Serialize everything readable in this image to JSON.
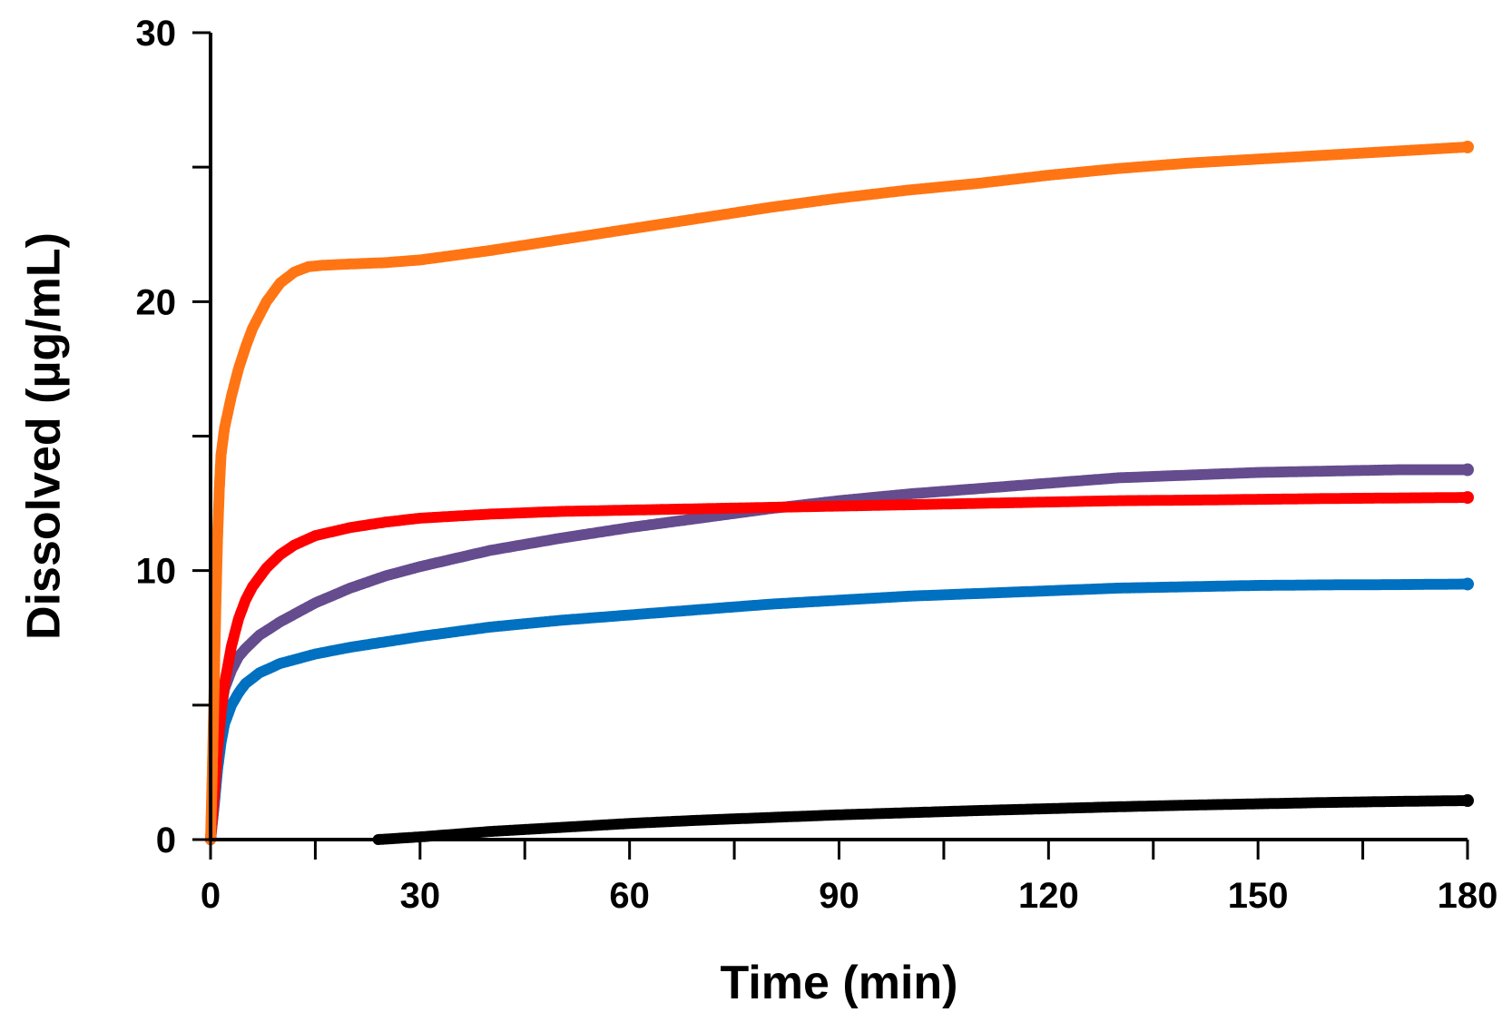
{
  "chart_data": {
    "type": "scatter",
    "title": "",
    "xlabel": "Time (min)",
    "ylabel": "Dissolved (µg/mL)",
    "xlim": [
      0,
      180
    ],
    "ylim": [
      0,
      30
    ],
    "x_major_ticks": [
      0,
      30,
      60,
      90,
      120,
      150,
      180
    ],
    "x_minor_ticks": [
      15,
      45,
      75,
      105,
      135,
      165
    ],
    "y_major_ticks": [
      0,
      10,
      20,
      30
    ],
    "y_minor_ticks": [
      5,
      15,
      25
    ],
    "x_tick_labels": [
      "0",
      "30",
      "60",
      "90",
      "120",
      "150",
      "180"
    ],
    "y_tick_labels": [
      "0",
      "10",
      "20",
      "30"
    ],
    "grid": false,
    "legend": "none",
    "series": [
      {
        "name": "orange",
        "color": "#FF7514",
        "points": [
          [
            0,
            0
          ],
          [
            0.25,
            2.5
          ],
          [
            0.5,
            5.5
          ],
          [
            0.75,
            8.6
          ],
          [
            1,
            11.2
          ],
          [
            1.25,
            13
          ],
          [
            1.5,
            14.3
          ],
          [
            2,
            15.3
          ],
          [
            3,
            16.5
          ],
          [
            4,
            17.5
          ],
          [
            5,
            18.3
          ],
          [
            6,
            19
          ],
          [
            8,
            20
          ],
          [
            10,
            20.7
          ],
          [
            12,
            21.1
          ],
          [
            14,
            21.3
          ],
          [
            16,
            21.35
          ],
          [
            20,
            21.4
          ],
          [
            25,
            21.45
          ],
          [
            30,
            21.55
          ],
          [
            40,
            21.9
          ],
          [
            50,
            22.3
          ],
          [
            60,
            22.7
          ],
          [
            70,
            23.1
          ],
          [
            80,
            23.5
          ],
          [
            90,
            23.85
          ],
          [
            100,
            24.15
          ],
          [
            110,
            24.4
          ],
          [
            120,
            24.7
          ],
          [
            130,
            24.95
          ],
          [
            140,
            25.15
          ],
          [
            150,
            25.3
          ],
          [
            160,
            25.45
          ],
          [
            170,
            25.6
          ],
          [
            180,
            25.75
          ]
        ]
      },
      {
        "name": "purple",
        "color": "#654C8E",
        "points": [
          [
            0,
            0
          ],
          [
            0.5,
            1.8
          ],
          [
            1,
            3.5
          ],
          [
            1.5,
            4.8
          ],
          [
            2,
            5.6
          ],
          [
            3,
            6.3
          ],
          [
            4,
            6.8
          ],
          [
            5,
            7.1
          ],
          [
            7,
            7.6
          ],
          [
            10,
            8.1
          ],
          [
            15,
            8.8
          ],
          [
            20,
            9.35
          ],
          [
            25,
            9.8
          ],
          [
            30,
            10.15
          ],
          [
            40,
            10.75
          ],
          [
            50,
            11.2
          ],
          [
            60,
            11.6
          ],
          [
            70,
            11.95
          ],
          [
            80,
            12.3
          ],
          [
            90,
            12.6
          ],
          [
            100,
            12.85
          ],
          [
            110,
            13.05
          ],
          [
            120,
            13.25
          ],
          [
            130,
            13.45
          ],
          [
            140,
            13.55
          ],
          [
            150,
            13.65
          ],
          [
            160,
            13.7
          ],
          [
            170,
            13.75
          ],
          [
            180,
            13.75
          ]
        ]
      },
      {
        "name": "red",
        "color": "#FF0000",
        "points": [
          [
            0,
            0
          ],
          [
            0.5,
            1.5
          ],
          [
            1,
            3.3
          ],
          [
            1.5,
            4.7
          ],
          [
            2,
            5.8
          ],
          [
            3,
            7.2
          ],
          [
            4,
            8.2
          ],
          [
            5,
            8.9
          ],
          [
            6,
            9.4
          ],
          [
            8,
            10.1
          ],
          [
            10,
            10.6
          ],
          [
            12,
            10.95
          ],
          [
            15,
            11.3
          ],
          [
            20,
            11.6
          ],
          [
            25,
            11.8
          ],
          [
            30,
            11.95
          ],
          [
            40,
            12.1
          ],
          [
            50,
            12.2
          ],
          [
            60,
            12.25
          ],
          [
            70,
            12.3
          ],
          [
            80,
            12.35
          ],
          [
            90,
            12.4
          ],
          [
            100,
            12.45
          ],
          [
            110,
            12.5
          ],
          [
            120,
            12.55
          ],
          [
            130,
            12.6
          ],
          [
            140,
            12.62
          ],
          [
            150,
            12.65
          ],
          [
            160,
            12.68
          ],
          [
            170,
            12.7
          ],
          [
            180,
            12.72
          ]
        ]
      },
      {
        "name": "blue",
        "color": "#0070C0",
        "points": [
          [
            0,
            0
          ],
          [
            0.5,
            1.2
          ],
          [
            1,
            2.6
          ],
          [
            1.5,
            3.6
          ],
          [
            2,
            4.3
          ],
          [
            3,
            5
          ],
          [
            4,
            5.45
          ],
          [
            5,
            5.8
          ],
          [
            7,
            6.2
          ],
          [
            10,
            6.55
          ],
          [
            15,
            6.9
          ],
          [
            20,
            7.15
          ],
          [
            25,
            7.35
          ],
          [
            30,
            7.55
          ],
          [
            40,
            7.9
          ],
          [
            50,
            8.15
          ],
          [
            60,
            8.35
          ],
          [
            70,
            8.55
          ],
          [
            80,
            8.75
          ],
          [
            90,
            8.9
          ],
          [
            100,
            9.05
          ],
          [
            110,
            9.15
          ],
          [
            120,
            9.25
          ],
          [
            130,
            9.35
          ],
          [
            140,
            9.4
          ],
          [
            150,
            9.45
          ],
          [
            160,
            9.47
          ],
          [
            170,
            9.48
          ],
          [
            180,
            9.5
          ]
        ]
      },
      {
        "name": "black",
        "color": "#000000",
        "points": [
          [
            24,
            0
          ],
          [
            30,
            0.1
          ],
          [
            40,
            0.3
          ],
          [
            50,
            0.45
          ],
          [
            60,
            0.6
          ],
          [
            70,
            0.72
          ],
          [
            80,
            0.82
          ],
          [
            90,
            0.92
          ],
          [
            100,
            1.0
          ],
          [
            110,
            1.08
          ],
          [
            120,
            1.15
          ],
          [
            130,
            1.22
          ],
          [
            140,
            1.28
          ],
          [
            150,
            1.33
          ],
          [
            160,
            1.38
          ],
          [
            170,
            1.42
          ],
          [
            180,
            1.45
          ]
        ]
      }
    ]
  }
}
